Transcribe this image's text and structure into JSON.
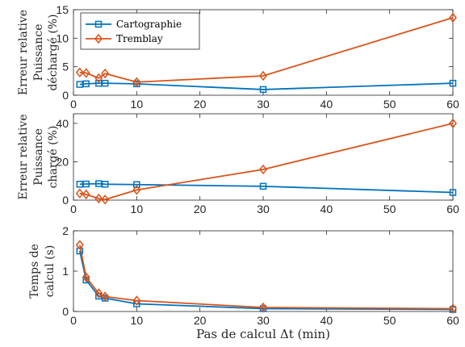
{
  "chart_data": [
    {
      "type": "line",
      "ylabel_lines": [
        "Erreur relative",
        "Puissance",
        "déchargé (%)"
      ],
      "xlim": [
        0,
        60
      ],
      "ylim": [
        0,
        15
      ],
      "xticks": [
        0,
        10,
        20,
        30,
        40,
        50,
        60
      ],
      "yticks": [
        0,
        5,
        10,
        15
      ],
      "x": [
        1,
        2,
        4,
        5,
        10,
        30,
        60
      ],
      "series": [
        {
          "name": "Cartographie",
          "color": "#0072BD",
          "marker": "square",
          "values": [
            1.9,
            2.0,
            2.1,
            2.1,
            2.0,
            1.0,
            2.1
          ]
        },
        {
          "name": "Tremblay",
          "color": "#D95319",
          "marker": "diamond",
          "values": [
            4.0,
            3.9,
            3.0,
            3.8,
            2.3,
            3.4,
            13.6
          ]
        }
      ],
      "legend": "top-left",
      "grid": false
    },
    {
      "type": "line",
      "ylabel_lines": [
        "Erreur relative",
        "Puissance",
        "chargé (%)"
      ],
      "xlim": [
        0,
        60
      ],
      "ylim": [
        0,
        45
      ],
      "xticks": [
        0,
        10,
        20,
        30,
        40,
        50,
        60
      ],
      "yticks": [
        0,
        20,
        40
      ],
      "x": [
        1,
        2,
        4,
        5,
        10,
        30,
        60
      ],
      "series": [
        {
          "name": "Cartographie",
          "color": "#0072BD",
          "marker": "square",
          "values": [
            8.3,
            8.4,
            8.6,
            8.3,
            8.1,
            7.2,
            4.0
          ]
        },
        {
          "name": "Tremblay",
          "color": "#D95319",
          "marker": "diamond",
          "values": [
            3.5,
            3.0,
            0.8,
            0.3,
            5.3,
            16.0,
            40.0
          ]
        }
      ],
      "grid": false
    },
    {
      "type": "line",
      "ylabel_lines": [
        "Temps de",
        "calcul (s)"
      ],
      "xlabel": "Pas de calcul Δt (min)",
      "xlim": [
        0,
        60
      ],
      "ylim": [
        0,
        2
      ],
      "xticks": [
        0,
        10,
        20,
        30,
        40,
        50,
        60
      ],
      "yticks": [
        0,
        1,
        2
      ],
      "x": [
        1,
        2,
        4,
        5,
        10,
        30,
        60
      ],
      "series": [
        {
          "name": "Cartographie",
          "color": "#0072BD",
          "marker": "square",
          "values": [
            1.5,
            0.78,
            0.38,
            0.33,
            0.19,
            0.07,
            0.05
          ]
        },
        {
          "name": "Tremblay",
          "color": "#D95319",
          "marker": "diamond",
          "values": [
            1.65,
            0.85,
            0.45,
            0.37,
            0.27,
            0.1,
            0.07
          ]
        }
      ],
      "grid": false
    }
  ]
}
